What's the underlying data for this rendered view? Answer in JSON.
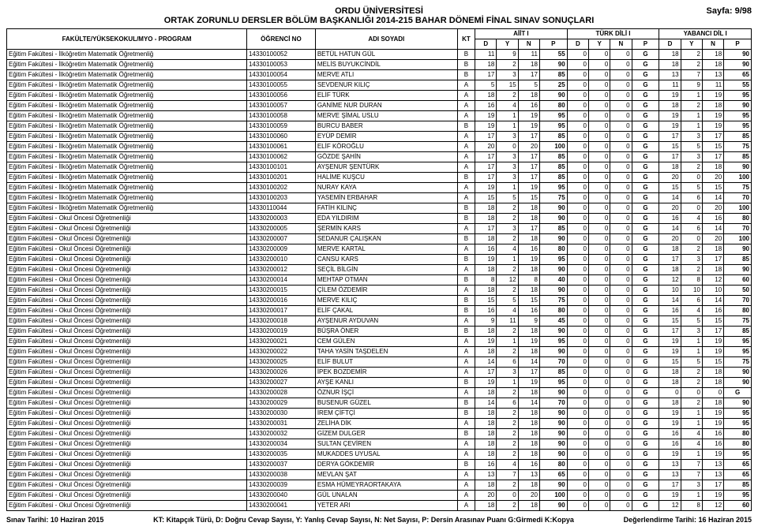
{
  "header": {
    "university": "ORDU ÜNİVERSİTESİ",
    "sub": "ORTAK ZORUNLU DERSLER BÖLÜM BAŞKANLIĞI 2014-215 BAHAR DÖNEMİ FİNAL SINAV SONUÇLARI",
    "page": "Sayfa: 9/98"
  },
  "columns": {
    "program": "FAKÜLTE/YÜKSEKOKUL/MYO - PROGRAM",
    "studentNo": "ÖĞRENCİ NO",
    "name": "ADI SOYADI",
    "kt": "KT",
    "course1": "AİİT I",
    "course2": "TÜRK DİLİ I",
    "course3": "YABANCI DİL I",
    "D": "D",
    "Y": "Y",
    "N": "N",
    "P": "P"
  },
  "footer": {
    "left": "Sınav Tarihi: 10 Haziran 2015",
    "mid": "KT: Kitapçık Türü, D: Doğru Cevap Sayısı, Y: Yanlış Cevap Sayısı, N: Net Sayısı, P: Dersin Arasınav Puanı G:Girmedi K:Kopya",
    "right": "Değerlendirme Tarihi: 16 Haziran 2015"
  },
  "programs": {
    "mat": "Eğitim Fakültesi - İlköğretim Matematik Öğretmenliğ",
    "okul": "Eğitim Fakültesi - Okul Öncesi Öğretmenliği"
  },
  "rows": [
    {
      "p": "mat",
      "no": "14330100052",
      "name": "BETÜL HATUN GÜL",
      "kt": "B",
      "c1": [
        "11",
        "9",
        "11",
        "55"
      ],
      "c2": [
        "0",
        "0",
        "0",
        "G"
      ],
      "c3": [
        "18",
        "2",
        "18",
        "90"
      ]
    },
    {
      "p": "mat",
      "no": "14330100053",
      "name": "MELİS BUYUKCİNDİL",
      "kt": "B",
      "c1": [
        "18",
        "2",
        "18",
        "90"
      ],
      "c2": [
        "0",
        "0",
        "0",
        "G"
      ],
      "c3": [
        "18",
        "2",
        "18",
        "90"
      ]
    },
    {
      "p": "mat",
      "no": "14330100054",
      "name": "MERVE ATLI",
      "kt": "B",
      "c1": [
        "17",
        "3",
        "17",
        "85"
      ],
      "c2": [
        "0",
        "0",
        "0",
        "G"
      ],
      "c3": [
        "13",
        "7",
        "13",
        "65"
      ]
    },
    {
      "p": "mat",
      "no": "14330100055",
      "name": "SEVDENUR KILIÇ",
      "kt": "A",
      "c1": [
        "5",
        "15",
        "5",
        "25"
      ],
      "c2": [
        "0",
        "0",
        "0",
        "G"
      ],
      "c3": [
        "11",
        "9",
        "11",
        "55"
      ]
    },
    {
      "p": "mat",
      "no": "14330100056",
      "name": "ELİF TÜRK",
      "kt": "A",
      "c1": [
        "18",
        "2",
        "18",
        "90"
      ],
      "c2": [
        "0",
        "0",
        "0",
        "G"
      ],
      "c3": [
        "19",
        "1",
        "19",
        "95"
      ]
    },
    {
      "p": "mat",
      "no": "14330100057",
      "name": "GANİME NUR DURAN",
      "kt": "A",
      "c1": [
        "16",
        "4",
        "16",
        "80"
      ],
      "c2": [
        "0",
        "0",
        "0",
        "G"
      ],
      "c3": [
        "18",
        "2",
        "18",
        "90"
      ]
    },
    {
      "p": "mat",
      "no": "14330100058",
      "name": "MERVE ŞİMAL USLU",
      "kt": "A",
      "c1": [
        "19",
        "1",
        "19",
        "95"
      ],
      "c2": [
        "0",
        "0",
        "0",
        "G"
      ],
      "c3": [
        "19",
        "1",
        "19",
        "95"
      ]
    },
    {
      "p": "mat",
      "no": "14330100059",
      "name": "BURCU BABER",
      "kt": "B",
      "c1": [
        "19",
        "1",
        "19",
        "95"
      ],
      "c2": [
        "0",
        "0",
        "0",
        "G"
      ],
      "c3": [
        "19",
        "1",
        "19",
        "95"
      ]
    },
    {
      "p": "mat",
      "no": "14330100060",
      "name": "EYÜP DEMİR",
      "kt": "A",
      "c1": [
        "17",
        "3",
        "17",
        "85"
      ],
      "c2": [
        "0",
        "0",
        "0",
        "G"
      ],
      "c3": [
        "17",
        "3",
        "17",
        "85"
      ]
    },
    {
      "p": "mat",
      "no": "14330100061",
      "name": "ELİF KÖROĞLU",
      "kt": "A",
      "c1": [
        "20",
        "0",
        "20",
        "100"
      ],
      "c2": [
        "0",
        "0",
        "0",
        "G"
      ],
      "c3": [
        "15",
        "5",
        "15",
        "75"
      ]
    },
    {
      "p": "mat",
      "no": "14330100062",
      "name": "GÖZDE ŞAHİN",
      "kt": "A",
      "c1": [
        "17",
        "3",
        "17",
        "85"
      ],
      "c2": [
        "0",
        "0",
        "0",
        "G"
      ],
      "c3": [
        "17",
        "3",
        "17",
        "85"
      ]
    },
    {
      "p": "mat",
      "no": "14330100101",
      "name": "AYŞENUR ŞENTÜRK",
      "kt": "A",
      "c1": [
        "17",
        "3",
        "17",
        "85"
      ],
      "c2": [
        "0",
        "0",
        "0",
        "G"
      ],
      "c3": [
        "18",
        "2",
        "18",
        "90"
      ]
    },
    {
      "p": "mat",
      "no": "14330100201",
      "name": "HALİME KUŞCU",
      "kt": "B",
      "c1": [
        "17",
        "3",
        "17",
        "85"
      ],
      "c2": [
        "0",
        "0",
        "0",
        "G"
      ],
      "c3": [
        "20",
        "0",
        "20",
        "100"
      ]
    },
    {
      "p": "mat",
      "no": "14330100202",
      "name": "NURAY KAYA",
      "kt": "A",
      "c1": [
        "19",
        "1",
        "19",
        "95"
      ],
      "c2": [
        "0",
        "0",
        "0",
        "G"
      ],
      "c3": [
        "15",
        "5",
        "15",
        "75"
      ]
    },
    {
      "p": "mat",
      "no": "14330100203",
      "name": "YASEMİN ERBAHAR",
      "kt": "A",
      "c1": [
        "15",
        "5",
        "15",
        "75"
      ],
      "c2": [
        "0",
        "0",
        "0",
        "G"
      ],
      "c3": [
        "14",
        "6",
        "14",
        "70"
      ]
    },
    {
      "p": "mat",
      "no": "14330110044",
      "name": "FATİH KILINÇ",
      "kt": "B",
      "c1": [
        "18",
        "2",
        "18",
        "90"
      ],
      "c2": [
        "0",
        "0",
        "0",
        "G"
      ],
      "c3": [
        "20",
        "0",
        "20",
        "100"
      ]
    },
    {
      "p": "okul",
      "no": "14330200003",
      "name": "EDA YILDIRIM",
      "kt": "B",
      "c1": [
        "18",
        "2",
        "18",
        "90"
      ],
      "c2": [
        "0",
        "0",
        "0",
        "G"
      ],
      "c3": [
        "16",
        "4",
        "16",
        "80"
      ]
    },
    {
      "p": "okul",
      "no": "14330200005",
      "name": "ŞERMİN KARS",
      "kt": "A",
      "c1": [
        "17",
        "3",
        "17",
        "85"
      ],
      "c2": [
        "0",
        "0",
        "0",
        "G"
      ],
      "c3": [
        "14",
        "6",
        "14",
        "70"
      ]
    },
    {
      "p": "okul",
      "no": "14330200007",
      "name": "SEDANUR ÇALIŞKAN",
      "kt": "B",
      "c1": [
        "18",
        "2",
        "18",
        "90"
      ],
      "c2": [
        "0",
        "0",
        "0",
        "G"
      ],
      "c3": [
        "20",
        "0",
        "20",
        "100"
      ]
    },
    {
      "p": "okul",
      "no": "14330200009",
      "name": "MERVE KARTAL",
      "kt": "A",
      "c1": [
        "16",
        "4",
        "16",
        "80"
      ],
      "c2": [
        "0",
        "0",
        "0",
        "G"
      ],
      "c3": [
        "18",
        "2",
        "18",
        "90"
      ]
    },
    {
      "p": "okul",
      "no": "14330200010",
      "name": "CANSU KARS",
      "kt": "B",
      "c1": [
        "19",
        "1",
        "19",
        "95"
      ],
      "c2": [
        "0",
        "0",
        "0",
        "G"
      ],
      "c3": [
        "17",
        "3",
        "17",
        "85"
      ]
    },
    {
      "p": "okul",
      "no": "14330200012",
      "name": "SEÇİL BİLGİN",
      "kt": "A",
      "c1": [
        "18",
        "2",
        "18",
        "90"
      ],
      "c2": [
        "0",
        "0",
        "0",
        "G"
      ],
      "c3": [
        "18",
        "2",
        "18",
        "90"
      ]
    },
    {
      "p": "okul",
      "no": "14330200014",
      "name": "MEHTAP OTMAN",
      "kt": "B",
      "c1": [
        "8",
        "12",
        "8",
        "40"
      ],
      "c2": [
        "0",
        "0",
        "0",
        "G"
      ],
      "c3": [
        "12",
        "8",
        "12",
        "60"
      ]
    },
    {
      "p": "okul",
      "no": "14330200015",
      "name": "ÇİLEM ÖZDEMİR",
      "kt": "A",
      "c1": [
        "18",
        "2",
        "18",
        "90"
      ],
      "c2": [
        "0",
        "0",
        "0",
        "G"
      ],
      "c3": [
        "10",
        "10",
        "10",
        "50"
      ]
    },
    {
      "p": "okul",
      "no": "14330200016",
      "name": "MERVE KILIÇ",
      "kt": "B",
      "c1": [
        "15",
        "5",
        "15",
        "75"
      ],
      "c2": [
        "0",
        "0",
        "0",
        "G"
      ],
      "c3": [
        "14",
        "6",
        "14",
        "70"
      ]
    },
    {
      "p": "okul",
      "no": "14330200017",
      "name": "ELİF ÇAKAL",
      "kt": "B",
      "c1": [
        "16",
        "4",
        "16",
        "80"
      ],
      "c2": [
        "0",
        "0",
        "0",
        "G"
      ],
      "c3": [
        "16",
        "4",
        "16",
        "80"
      ]
    },
    {
      "p": "okul",
      "no": "14330200018",
      "name": "AYŞENUR AYDUVAN",
      "kt": "A",
      "c1": [
        "9",
        "11",
        "9",
        "45"
      ],
      "c2": [
        "0",
        "0",
        "0",
        "G"
      ],
      "c3": [
        "15",
        "5",
        "15",
        "75"
      ]
    },
    {
      "p": "okul",
      "no": "14330200019",
      "name": "BÜŞRA ÖNER",
      "kt": "B",
      "c1": [
        "18",
        "2",
        "18",
        "90"
      ],
      "c2": [
        "0",
        "0",
        "0",
        "G"
      ],
      "c3": [
        "17",
        "3",
        "17",
        "85"
      ]
    },
    {
      "p": "okul",
      "no": "14330200021",
      "name": "CEM GÜLEN",
      "kt": "A",
      "c1": [
        "19",
        "1",
        "19",
        "95"
      ],
      "c2": [
        "0",
        "0",
        "0",
        "G"
      ],
      "c3": [
        "19",
        "1",
        "19",
        "95"
      ]
    },
    {
      "p": "okul",
      "no": "14330200022",
      "name": "TAHA YASİN TAŞDELEN",
      "kt": "A",
      "c1": [
        "18",
        "2",
        "18",
        "90"
      ],
      "c2": [
        "0",
        "0",
        "0",
        "G"
      ],
      "c3": [
        "19",
        "1",
        "19",
        "95"
      ]
    },
    {
      "p": "okul",
      "no": "14330200025",
      "name": "ELİF BULUT",
      "kt": "A",
      "c1": [
        "14",
        "6",
        "14",
        "70"
      ],
      "c2": [
        "0",
        "0",
        "0",
        "G"
      ],
      "c3": [
        "15",
        "5",
        "15",
        "75"
      ]
    },
    {
      "p": "okul",
      "no": "14330200026",
      "name": "İPEK BOZDEMİR",
      "kt": "A",
      "c1": [
        "17",
        "3",
        "17",
        "85"
      ],
      "c2": [
        "0",
        "0",
        "0",
        "G"
      ],
      "c3": [
        "18",
        "2",
        "18",
        "90"
      ]
    },
    {
      "p": "okul",
      "no": "14330200027",
      "name": "AYŞE KANLI",
      "kt": "B",
      "c1": [
        "19",
        "1",
        "19",
        "95"
      ],
      "c2": [
        "0",
        "0",
        "0",
        "G"
      ],
      "c3": [
        "18",
        "2",
        "18",
        "90"
      ]
    },
    {
      "p": "okul",
      "no": "14330200028",
      "name": "ÖZNUR İŞÇİ",
      "kt": "A",
      "c1": [
        "18",
        "2",
        "18",
        "90"
      ],
      "c2": [
        "0",
        "0",
        "0",
        "G"
      ],
      "c3": [
        "0",
        "0",
        "0",
        "G"
      ]
    },
    {
      "p": "okul",
      "no": "14330200029",
      "name": "BUSENUR GÜZEL",
      "kt": "B",
      "c1": [
        "14",
        "6",
        "14",
        "70"
      ],
      "c2": [
        "0",
        "0",
        "0",
        "G"
      ],
      "c3": [
        "18",
        "2",
        "18",
        "90"
      ]
    },
    {
      "p": "okul",
      "no": "14330200030",
      "name": "İREM ÇİFTÇİ",
      "kt": "B",
      "c1": [
        "18",
        "2",
        "18",
        "90"
      ],
      "c2": [
        "0",
        "0",
        "0",
        "G"
      ],
      "c3": [
        "19",
        "1",
        "19",
        "95"
      ]
    },
    {
      "p": "okul",
      "no": "14330200031",
      "name": "ZELİHA DİK",
      "kt": "A",
      "c1": [
        "18",
        "2",
        "18",
        "90"
      ],
      "c2": [
        "0",
        "0",
        "0",
        "G"
      ],
      "c3": [
        "19",
        "1",
        "19",
        "95"
      ]
    },
    {
      "p": "okul",
      "no": "14330200032",
      "name": "GİZEM DULGER",
      "kt": "B",
      "c1": [
        "18",
        "2",
        "18",
        "90"
      ],
      "c2": [
        "0",
        "0",
        "0",
        "G"
      ],
      "c3": [
        "16",
        "4",
        "16",
        "80"
      ]
    },
    {
      "p": "okul",
      "no": "14330200034",
      "name": "SULTAN ÇEVİREN",
      "kt": "A",
      "c1": [
        "18",
        "2",
        "18",
        "90"
      ],
      "c2": [
        "0",
        "0",
        "0",
        "G"
      ],
      "c3": [
        "16",
        "4",
        "16",
        "80"
      ]
    },
    {
      "p": "okul",
      "no": "14330200035",
      "name": "MUKADDES UYUSAL",
      "kt": "A",
      "c1": [
        "18",
        "2",
        "18",
        "90"
      ],
      "c2": [
        "0",
        "0",
        "0",
        "G"
      ],
      "c3": [
        "19",
        "1",
        "19",
        "95"
      ]
    },
    {
      "p": "okul",
      "no": "14330200037",
      "name": "DERYA GÖKDEMİR",
      "kt": "B",
      "c1": [
        "16",
        "4",
        "16",
        "80"
      ],
      "c2": [
        "0",
        "0",
        "0",
        "G"
      ],
      "c3": [
        "13",
        "7",
        "13",
        "65"
      ]
    },
    {
      "p": "okul",
      "no": "14330200038",
      "name": "MEVLAN ŞAT",
      "kt": "A",
      "c1": [
        "13",
        "7",
        "13",
        "65"
      ],
      "c2": [
        "0",
        "0",
        "0",
        "G"
      ],
      "c3": [
        "13",
        "7",
        "13",
        "65"
      ]
    },
    {
      "p": "okul",
      "no": "14330200039",
      "name": "ESMA HÜMEYRAORTAKAYA",
      "kt": "A",
      "c1": [
        "18",
        "2",
        "18",
        "90"
      ],
      "c2": [
        "0",
        "0",
        "0",
        "G"
      ],
      "c3": [
        "17",
        "3",
        "17",
        "85"
      ]
    },
    {
      "p": "okul",
      "no": "14330200040",
      "name": "GÜL UNALAN",
      "kt": "A",
      "c1": [
        "20",
        "0",
        "20",
        "100"
      ],
      "c2": [
        "0",
        "0",
        "0",
        "G"
      ],
      "c3": [
        "19",
        "1",
        "19",
        "95"
      ]
    },
    {
      "p": "okul",
      "no": "14330200041",
      "name": "YETER ARI",
      "kt": "A",
      "c1": [
        "18",
        "2",
        "18",
        "90"
      ],
      "c2": [
        "0",
        "0",
        "0",
        "G"
      ],
      "c3": [
        "12",
        "8",
        "12",
        "60"
      ]
    }
  ]
}
